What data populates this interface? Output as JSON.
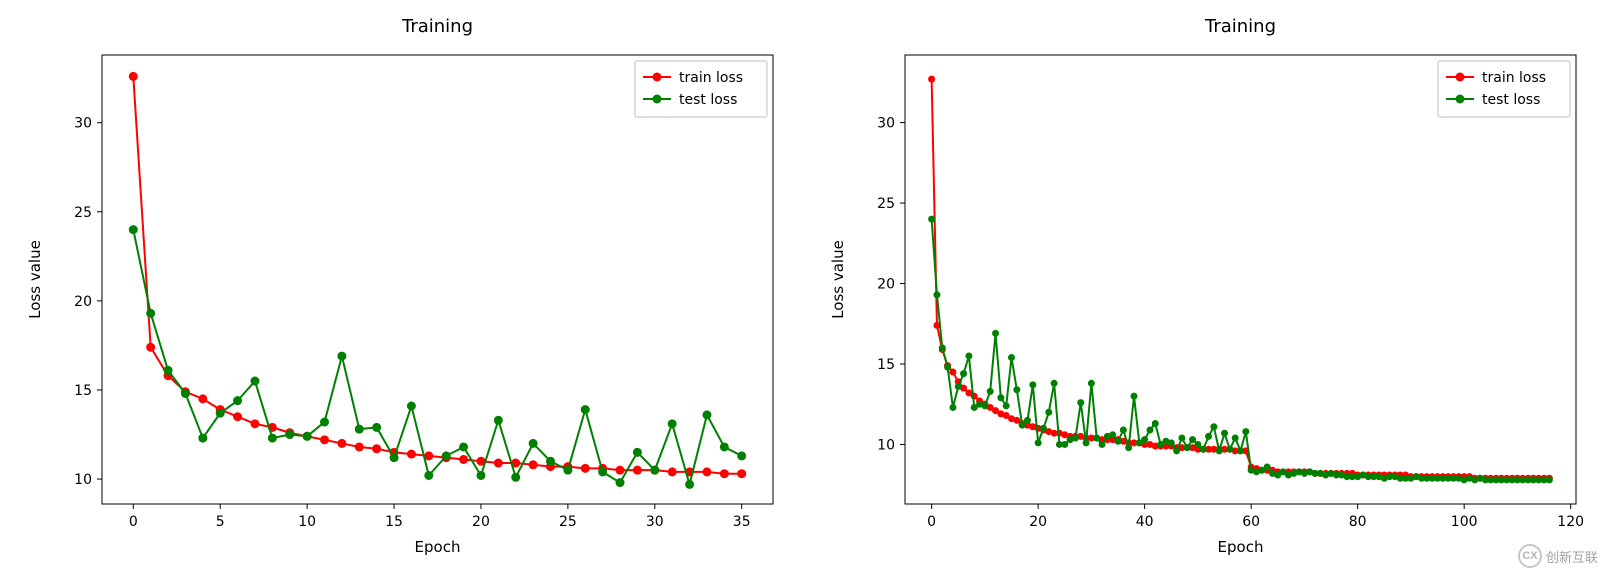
{
  "watermark": {
    "icon_text": "CX",
    "text": "创新互联"
  },
  "charts": [
    {
      "type": "line",
      "title": "Training",
      "title_fontsize": 18,
      "xlabel": "Epoch",
      "ylabel": "Loss value",
      "label_fontsize": 15,
      "tick_fontsize": 14,
      "background_color": "#ffffff",
      "axis_color": "#000000",
      "xlim": [
        -1.8,
        36.8
      ],
      "ylim": [
        8.6,
        33.8
      ],
      "xticks": [
        0,
        5,
        10,
        15,
        20,
        25,
        30,
        35
      ],
      "yticks": [
        10,
        15,
        20,
        25,
        30
      ],
      "line_width": 2,
      "marker_radius": 4.5,
      "legend": {
        "position": "upper-right",
        "border_color": "#bfbfbf",
        "bg_color": "#ffffff",
        "items": [
          {
            "label": "train loss",
            "color": "#ff0000"
          },
          {
            "label": "test loss",
            "color": "#008000"
          }
        ]
      },
      "series": [
        {
          "name": "train loss",
          "color": "#ff0000",
          "x": [
            0,
            1,
            2,
            3,
            4,
            5,
            6,
            7,
            8,
            9,
            10,
            11,
            12,
            13,
            14,
            15,
            16,
            17,
            18,
            19,
            20,
            21,
            22,
            23,
            24,
            25,
            26,
            27,
            28,
            29,
            30,
            31,
            32,
            33,
            34,
            35
          ],
          "y": [
            32.6,
            17.4,
            15.8,
            14.9,
            14.5,
            13.9,
            13.5,
            13.1,
            12.9,
            12.6,
            12.4,
            12.2,
            12.0,
            11.8,
            11.7,
            11.5,
            11.4,
            11.3,
            11.2,
            11.1,
            11.0,
            10.9,
            10.9,
            10.8,
            10.7,
            10.7,
            10.6,
            10.6,
            10.5,
            10.5,
            10.5,
            10.4,
            10.4,
            10.4,
            10.3,
            10.3
          ]
        },
        {
          "name": "test loss",
          "color": "#008000",
          "x": [
            0,
            1,
            2,
            3,
            4,
            5,
            6,
            7,
            8,
            9,
            10,
            11,
            12,
            13,
            14,
            15,
            16,
            17,
            18,
            19,
            20,
            21,
            22,
            23,
            24,
            25,
            26,
            27,
            28,
            29,
            30,
            31,
            32,
            33,
            34,
            35
          ],
          "y": [
            24.0,
            19.3,
            16.1,
            14.8,
            12.3,
            13.7,
            14.4,
            15.5,
            12.3,
            12.5,
            12.4,
            13.2,
            16.9,
            12.8,
            12.9,
            11.2,
            14.1,
            10.2,
            11.3,
            11.8,
            10.2,
            13.3,
            10.1,
            12.0,
            11.0,
            10.5,
            13.9,
            10.4,
            9.8,
            11.5,
            10.5,
            13.1,
            9.7,
            13.6,
            11.8,
            11.3
          ]
        }
      ]
    },
    {
      "type": "line",
      "title": "Training",
      "title_fontsize": 18,
      "xlabel": "Epoch",
      "ylabel": "Loss value",
      "label_fontsize": 15,
      "tick_fontsize": 14,
      "background_color": "#ffffff",
      "axis_color": "#000000",
      "xlim": [
        -5,
        121
      ],
      "ylim": [
        6.3,
        34.2
      ],
      "xticks": [
        0,
        20,
        40,
        60,
        80,
        100,
        120
      ],
      "yticks": [
        10,
        15,
        20,
        25,
        30
      ],
      "line_width": 2,
      "marker_radius": 3.5,
      "legend": {
        "position": "upper-right",
        "border_color": "#bfbfbf",
        "bg_color": "#ffffff",
        "items": [
          {
            "label": "train loss",
            "color": "#ff0000"
          },
          {
            "label": "test loss",
            "color": "#008000"
          }
        ]
      },
      "series": [
        {
          "name": "train loss",
          "color": "#ff0000",
          "x": [
            0,
            1,
            2,
            3,
            4,
            5,
            6,
            7,
            8,
            9,
            10,
            11,
            12,
            13,
            14,
            15,
            16,
            17,
            18,
            19,
            20,
            21,
            22,
            23,
            24,
            25,
            26,
            27,
            28,
            29,
            30,
            31,
            32,
            33,
            34,
            35,
            36,
            37,
            38,
            39,
            40,
            41,
            42,
            43,
            44,
            45,
            46,
            47,
            48,
            49,
            50,
            51,
            52,
            53,
            54,
            55,
            56,
            57,
            58,
            59,
            60,
            61,
            62,
            63,
            64,
            65,
            66,
            67,
            68,
            69,
            70,
            71,
            72,
            73,
            74,
            75,
            76,
            77,
            78,
            79,
            80,
            81,
            82,
            83,
            84,
            85,
            86,
            87,
            88,
            89,
            90,
            91,
            92,
            93,
            94,
            95,
            96,
            97,
            98,
            99,
            100,
            101,
            102,
            103,
            104,
            105,
            106,
            107,
            108,
            109,
            110,
            111,
            112,
            113,
            114,
            115,
            116
          ],
          "y": [
            32.7,
            17.4,
            15.9,
            14.9,
            14.5,
            13.9,
            13.5,
            13.2,
            13.0,
            12.7,
            12.5,
            12.3,
            12.1,
            11.9,
            11.8,
            11.6,
            11.5,
            11.3,
            11.2,
            11.1,
            11.0,
            10.9,
            10.8,
            10.7,
            10.7,
            10.6,
            10.5,
            10.5,
            10.5,
            10.4,
            10.4,
            10.4,
            10.3,
            10.3,
            10.3,
            10.3,
            10.2,
            10.1,
            10.1,
            10.1,
            10.0,
            10.0,
            9.9,
            9.9,
            9.9,
            9.9,
            9.8,
            9.8,
            9.8,
            9.8,
            9.7,
            9.7,
            9.7,
            9.7,
            9.7,
            9.7,
            9.7,
            9.6,
            9.6,
            9.6,
            8.6,
            8.5,
            8.4,
            8.4,
            8.4,
            8.3,
            8.3,
            8.3,
            8.3,
            8.3,
            8.3,
            8.3,
            8.2,
            8.2,
            8.2,
            8.2,
            8.2,
            8.2,
            8.2,
            8.2,
            8.1,
            8.1,
            8.1,
            8.1,
            8.1,
            8.1,
            8.1,
            8.1,
            8.1,
            8.1,
            8.0,
            8.0,
            8.0,
            8.0,
            8.0,
            8.0,
            8.0,
            8.0,
            8.0,
            8.0,
            8.0,
            8.0,
            7.9,
            7.9,
            7.9,
            7.9,
            7.9,
            7.9,
            7.9,
            7.9,
            7.9,
            7.9,
            7.9,
            7.9,
            7.9,
            7.9,
            7.9
          ]
        },
        {
          "name": "test loss",
          "color": "#008000",
          "x": [
            0,
            1,
            2,
            3,
            4,
            5,
            6,
            7,
            8,
            9,
            10,
            11,
            12,
            13,
            14,
            15,
            16,
            17,
            18,
            19,
            20,
            21,
            22,
            23,
            24,
            25,
            26,
            27,
            28,
            29,
            30,
            31,
            32,
            33,
            34,
            35,
            36,
            37,
            38,
            39,
            40,
            41,
            42,
            43,
            44,
            45,
            46,
            47,
            48,
            49,
            50,
            51,
            52,
            53,
            54,
            55,
            56,
            57,
            58,
            59,
            60,
            61,
            62,
            63,
            64,
            65,
            66,
            67,
            68,
            69,
            70,
            71,
            72,
            73,
            74,
            75,
            76,
            77,
            78,
            79,
            80,
            81,
            82,
            83,
            84,
            85,
            86,
            87,
            88,
            89,
            90,
            91,
            92,
            93,
            94,
            95,
            96,
            97,
            98,
            99,
            100,
            101,
            102,
            103,
            104,
            105,
            106,
            107,
            108,
            109,
            110,
            111,
            112,
            113,
            114,
            115,
            116
          ],
          "y": [
            24.0,
            19.3,
            16.0,
            14.8,
            12.3,
            13.6,
            14.4,
            15.5,
            12.3,
            12.5,
            12.4,
            13.3,
            16.9,
            12.9,
            12.4,
            15.4,
            13.4,
            11.2,
            11.5,
            13.7,
            10.1,
            11.0,
            12.0,
            13.8,
            10.0,
            10.0,
            10.3,
            10.4,
            12.6,
            10.1,
            13.8,
            10.4,
            10.0,
            10.5,
            10.6,
            10.2,
            10.9,
            9.8,
            13.0,
            10.1,
            10.3,
            10.9,
            11.3,
            10.0,
            10.2,
            10.1,
            9.6,
            10.4,
            9.8,
            10.3,
            10.0,
            9.7,
            10.5,
            11.1,
            9.6,
            10.7,
            9.7,
            10.4,
            9.6,
            10.8,
            8.4,
            8.3,
            8.4,
            8.6,
            8.2,
            8.1,
            8.3,
            8.1,
            8.2,
            8.3,
            8.2,
            8.3,
            8.2,
            8.2,
            8.1,
            8.2,
            8.1,
            8.1,
            8.0,
            8.0,
            8.0,
            8.1,
            8.0,
            8.0,
            8.0,
            7.9,
            8.0,
            8.0,
            7.9,
            7.9,
            7.9,
            8.0,
            7.9,
            7.9,
            7.9,
            7.9,
            7.9,
            7.9,
            7.9,
            7.9,
            7.8,
            7.9,
            7.8,
            7.9,
            7.8,
            7.8,
            7.8,
            7.8,
            7.8,
            7.8,
            7.8,
            7.8,
            7.8,
            7.8,
            7.8,
            7.8,
            7.8
          ]
        }
      ]
    }
  ]
}
